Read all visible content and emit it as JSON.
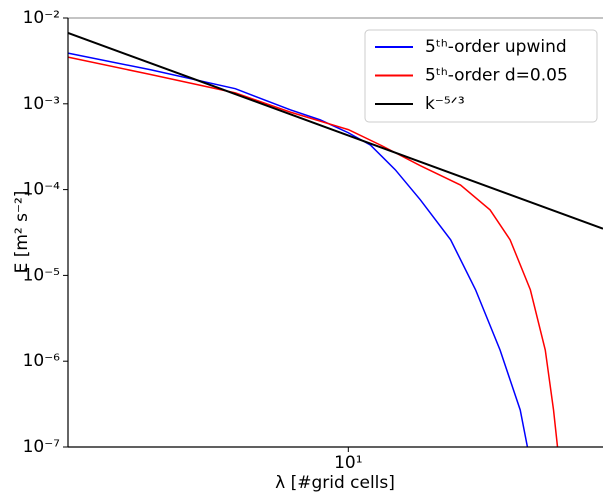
{
  "chart_data": {
    "type": "line",
    "log_x": true,
    "log_y": true,
    "x_label": "λ [#grid cells]",
    "y_label": "E [m² s⁻²]",
    "xlim": [
      1.91,
      45
    ],
    "ylim": [
      1e-07,
      0.01
    ],
    "xticks": [
      {
        "value": 10,
        "label": "10¹"
      }
    ],
    "yticks": [
      {
        "value": 1e-07,
        "label": "10⁻⁷"
      },
      {
        "value": 1e-06,
        "label": "10⁻⁶"
      },
      {
        "value": 1e-05,
        "label": "10⁻⁵"
      },
      {
        "value": 0.0001,
        "label": "10⁻⁴"
      },
      {
        "value": 0.001,
        "label": "10⁻³"
      },
      {
        "value": 0.01,
        "label": "10⁻²"
      }
    ],
    "legend": "upper right",
    "series": [
      {
        "name": "5ᵗʰ-order upwind",
        "color": "#0000ff",
        "x": [
          1.91,
          3.1,
          5.13,
          7.1,
          8.47,
          10,
          11.4,
          13.2,
          15.3,
          18.3,
          21.2,
          24.5,
          27.6,
          28.8
        ],
        "values": [
          0.0039,
          0.0025,
          0.0015,
          0.00085,
          0.00065,
          0.00046,
          0.00033,
          0.00017,
          7.6e-05,
          2.6e-05,
          6.8e-06,
          1.35e-06,
          2.7e-07,
          1e-07
        ]
      },
      {
        "name": "5ᵗʰ-order d=0.05",
        "color": "#ff0000",
        "x": [
          1.91,
          3.1,
          5.13,
          7.1,
          10,
          12.1,
          15.3,
          19.4,
          23.1,
          26.0,
          29.3,
          32.0,
          33.6,
          34.4
        ],
        "values": [
          0.0035,
          0.0022,
          0.00134,
          0.0008,
          0.0005,
          0.00033,
          0.00019,
          0.000113,
          5.8e-05,
          2.6e-05,
          6.8e-06,
          1.35e-06,
          2.7e-07,
          1e-07
        ]
      },
      {
        "name": "k⁻⁵ᐟ³",
        "color": "#000000",
        "x": [
          1.91,
          45
        ],
        "values": [
          0.0067,
          3.5e-05
        ]
      }
    ]
  }
}
